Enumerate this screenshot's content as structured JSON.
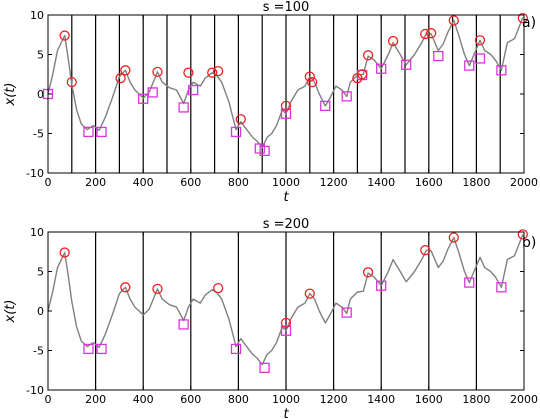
{
  "figure": {
    "colors": {
      "trace": "#808080",
      "max_marker": "#ee2222",
      "min_marker": "#dd33dd",
      "boundary": "#000000"
    }
  },
  "chart_data": [
    {
      "type": "line",
      "panel_label": "a)",
      "title": "s =100",
      "xlabel": "t",
      "ylabel": "x(t)",
      "xlim": [
        0,
        2000
      ],
      "ylim": [
        -10,
        10
      ],
      "x_ticks": [
        0,
        200,
        400,
        600,
        800,
        1000,
        1200,
        1400,
        1600,
        1800,
        2000
      ],
      "y_ticks": [
        -10,
        -5,
        0,
        5,
        10
      ],
      "segment_boundaries": [
        100,
        200,
        300,
        400,
        500,
        600,
        700,
        800,
        900,
        1000,
        1100,
        1200,
        1300,
        1400,
        1500,
        1600,
        1700,
        1800,
        1900
      ],
      "series": [
        {
          "kind": "trace",
          "values": [
            [
              0,
              0
            ],
            [
              20,
              2.5
            ],
            [
              40,
              5.5
            ],
            [
              70,
              7.4
            ],
            [
              85,
              4.5
            ],
            [
              100,
              1.2
            ],
            [
              120,
              -2
            ],
            [
              140,
              -3.8
            ],
            [
              165,
              -4.5
            ],
            [
              190,
              -4
            ],
            [
              215,
              -4.6
            ],
            [
              240,
              -3
            ],
            [
              270,
              -0.5
            ],
            [
              300,
              2.2
            ],
            [
              325,
              3
            ],
            [
              345,
              1.5
            ],
            [
              365,
              0.5
            ],
            [
              400,
              -0.5
            ],
            [
              425,
              0.2
            ],
            [
              460,
              2.8
            ],
            [
              480,
              1.5
            ],
            [
              510,
              0.8
            ],
            [
              540,
              0.5
            ],
            [
              570,
              -1.2
            ],
            [
              590,
              0.5
            ],
            [
              610,
              1.5
            ],
            [
              640,
              1
            ],
            [
              660,
              2
            ],
            [
              690,
              2.7
            ],
            [
              710,
              2.3
            ],
            [
              730,
              1.5
            ],
            [
              760,
              -1
            ],
            [
              790,
              -4.5
            ],
            [
              810,
              -3.5
            ],
            [
              835,
              -4.5
            ],
            [
              860,
              -5.5
            ],
            [
              880,
              -6
            ],
            [
              900,
              -6.8
            ],
            [
              920,
              -5.5
            ],
            [
              940,
              -5
            ],
            [
              960,
              -4
            ],
            [
              985,
              -2
            ],
            [
              1000,
              -2.5
            ],
            [
              1020,
              -1
            ],
            [
              1050,
              0.5
            ],
            [
              1080,
              1
            ],
            [
              1100,
              2.2
            ],
            [
              1120,
              1.5
            ],
            [
              1140,
              0
            ],
            [
              1165,
              -1.5
            ],
            [
              1185,
              -0.5
            ],
            [
              1210,
              1
            ],
            [
              1235,
              0.5
            ],
            [
              1255,
              -0.3
            ],
            [
              1270,
              1.5
            ],
            [
              1300,
              2.4
            ],
            [
              1325,
              2.5
            ],
            [
              1345,
              4.8
            ],
            [
              1370,
              4.3
            ],
            [
              1400,
              3.2
            ],
            [
              1430,
              5
            ],
            [
              1450,
              6.5
            ],
            [
              1480,
              5
            ],
            [
              1505,
              3.7
            ],
            [
              1540,
              5
            ],
            [
              1570,
              6.5
            ],
            [
              1590,
              7.7
            ],
            [
              1610,
              7.6
            ],
            [
              1640,
              5.5
            ],
            [
              1660,
              6.3
            ],
            [
              1680,
              7.8
            ],
            [
              1705,
              9.3
            ],
            [
              1725,
              7.5
            ],
            [
              1750,
              5
            ],
            [
              1770,
              3.6
            ],
            [
              1790,
              5
            ],
            [
              1815,
              6.8
            ],
            [
              1835,
              5.5
            ],
            [
              1860,
              5
            ],
            [
              1880,
              4.3
            ],
            [
              1905,
              3
            ],
            [
              1930,
              6.5
            ],
            [
              1960,
              7
            ],
            [
              1980,
              8.5
            ],
            [
              1995,
              9.7
            ]
          ]
        },
        {
          "kind": "max-markers",
          "values": [
            [
              70,
              7.4
            ],
            [
              100,
              1.5
            ],
            [
              305,
              2
            ],
            [
              325,
              3
            ],
            [
              460,
              2.8
            ],
            [
              590,
              2.7
            ],
            [
              690,
              2.7
            ],
            [
              715,
              2.9
            ],
            [
              810,
              -3.2
            ],
            [
              1000,
              -1.5
            ],
            [
              1100,
              2.2
            ],
            [
              1110,
              1.5
            ],
            [
              1300,
              2
            ],
            [
              1320,
              2.5
            ],
            [
              1345,
              4.9
            ],
            [
              1450,
              6.7
            ],
            [
              1585,
              7.6
            ],
            [
              1610,
              7.7
            ],
            [
              1705,
              9.3
            ],
            [
              1815,
              6.8
            ],
            [
              1995,
              9.6
            ]
          ]
        },
        {
          "kind": "min-markers",
          "values": [
            [
              0,
              0
            ],
            [
              170,
              -4.8
            ],
            [
              225,
              -4.8
            ],
            [
              400,
              -0.6
            ],
            [
              440,
              0.2
            ],
            [
              570,
              -1.7
            ],
            [
              610,
              0.5
            ],
            [
              790,
              -4.8
            ],
            [
              890,
              -6.9
            ],
            [
              910,
              -7.2
            ],
            [
              1000,
              -2.5
            ],
            [
              1165,
              -1.5
            ],
            [
              1255,
              -0.3
            ],
            [
              1320,
              2.4
            ],
            [
              1400,
              3.2
            ],
            [
              1505,
              3.7
            ],
            [
              1640,
              4.8
            ],
            [
              1770,
              3.6
            ],
            [
              1815,
              4.5
            ],
            [
              1905,
              3
            ]
          ]
        }
      ]
    },
    {
      "type": "line",
      "panel_label": "b)",
      "title": "s =200",
      "xlabel": "t",
      "ylabel": "x(t)",
      "xlim": [
        0,
        2000
      ],
      "ylim": [
        -10,
        10
      ],
      "x_ticks": [
        0,
        200,
        400,
        600,
        800,
        1000,
        1200,
        1400,
        1600,
        1800,
        2000
      ],
      "y_ticks": [
        -10,
        -5,
        0,
        5,
        10
      ],
      "segment_boundaries": [
        200,
        400,
        600,
        800,
        1000,
        1200,
        1400,
        1600,
        1800
      ],
      "series": [
        {
          "kind": "trace",
          "values": [
            [
              0,
              0
            ],
            [
              20,
              2.5
            ],
            [
              40,
              5.5
            ],
            [
              70,
              7.4
            ],
            [
              85,
              4.5
            ],
            [
              100,
              1.2
            ],
            [
              120,
              -2
            ],
            [
              140,
              -3.8
            ],
            [
              165,
              -4.5
            ],
            [
              190,
              -4
            ],
            [
              215,
              -4.6
            ],
            [
              240,
              -3
            ],
            [
              270,
              -0.5
            ],
            [
              300,
              2.2
            ],
            [
              325,
              3
            ],
            [
              345,
              1.5
            ],
            [
              365,
              0.5
            ],
            [
              400,
              -0.5
            ],
            [
              425,
              0.2
            ],
            [
              460,
              2.8
            ],
            [
              480,
              1.5
            ],
            [
              510,
              0.8
            ],
            [
              540,
              0.5
            ],
            [
              570,
              -1.2
            ],
            [
              590,
              0.5
            ],
            [
              610,
              1.5
            ],
            [
              640,
              1
            ],
            [
              660,
              2
            ],
            [
              690,
              2.7
            ],
            [
              710,
              2.3
            ],
            [
              730,
              1.5
            ],
            [
              760,
              -1
            ],
            [
              790,
              -4.5
            ],
            [
              810,
              -3.5
            ],
            [
              835,
              -4.5
            ],
            [
              860,
              -5.5
            ],
            [
              880,
              -6
            ],
            [
              900,
              -6.8
            ],
            [
              920,
              -5.5
            ],
            [
              940,
              -5
            ],
            [
              960,
              -4
            ],
            [
              985,
              -2
            ],
            [
              1000,
              -2.5
            ],
            [
              1020,
              -1
            ],
            [
              1050,
              0.5
            ],
            [
              1080,
              1
            ],
            [
              1100,
              2.2
            ],
            [
              1120,
              1.5
            ],
            [
              1140,
              0
            ],
            [
              1165,
              -1.5
            ],
            [
              1185,
              -0.5
            ],
            [
              1210,
              1
            ],
            [
              1235,
              0.5
            ],
            [
              1255,
              -0.3
            ],
            [
              1270,
              1.5
            ],
            [
              1300,
              2.4
            ],
            [
              1325,
              2.5
            ],
            [
              1345,
              4.8
            ],
            [
              1370,
              4.3
            ],
            [
              1400,
              3.2
            ],
            [
              1430,
              5
            ],
            [
              1450,
              6.5
            ],
            [
              1480,
              5
            ],
            [
              1505,
              3.7
            ],
            [
              1540,
              5
            ],
            [
              1570,
              6.5
            ],
            [
              1590,
              7.7
            ],
            [
              1610,
              7.6
            ],
            [
              1640,
              5.5
            ],
            [
              1660,
              6.3
            ],
            [
              1680,
              7.8
            ],
            [
              1705,
              9.3
            ],
            [
              1725,
              7.5
            ],
            [
              1750,
              5
            ],
            [
              1770,
              3.6
            ],
            [
              1790,
              5
            ],
            [
              1815,
              6.8
            ],
            [
              1835,
              5.5
            ],
            [
              1860,
              5
            ],
            [
              1880,
              4.3
            ],
            [
              1905,
              3
            ],
            [
              1930,
              6.5
            ],
            [
              1960,
              7
            ],
            [
              1980,
              8.5
            ],
            [
              1995,
              9.7
            ]
          ]
        },
        {
          "kind": "max-markers",
          "values": [
            [
              70,
              7.4
            ],
            [
              325,
              3
            ],
            [
              460,
              2.8
            ],
            [
              715,
              2.9
            ],
            [
              1000,
              -1.5
            ],
            [
              1100,
              2.2
            ],
            [
              1345,
              4.9
            ],
            [
              1585,
              7.7
            ],
            [
              1705,
              9.3
            ],
            [
              1995,
              9.7
            ]
          ]
        },
        {
          "kind": "min-markers",
          "values": [
            [
              170,
              -4.8
            ],
            [
              225,
              -4.8
            ],
            [
              570,
              -1.7
            ],
            [
              790,
              -4.8
            ],
            [
              910,
              -7.2
            ],
            [
              1000,
              -2.5
            ],
            [
              1255,
              -0.2
            ],
            [
              1400,
              3.2
            ],
            [
              1770,
              3.6
            ],
            [
              1905,
              3
            ]
          ]
        }
      ]
    }
  ]
}
